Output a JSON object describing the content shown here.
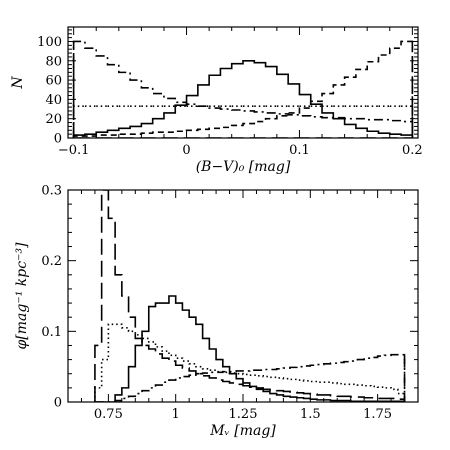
{
  "chart_data": [
    {
      "type": "histogram",
      "xlabel": "(B−V)₀ [mag]",
      "ylabel": "N",
      "xlim": [
        -0.105,
        0.205
      ],
      "ylim": [
        0,
        115
      ],
      "xticks": [
        -0.1,
        0,
        0.1,
        0.2
      ],
      "xtick_labels": [
        "−0.1",
        "0",
        "0.1",
        "0.2"
      ],
      "yticks": [
        0,
        20,
        40,
        60,
        80,
        100
      ],
      "ytick_labels": [
        "0",
        "20",
        "40",
        "60",
        "80",
        "100"
      ],
      "bin_edges": [
        -0.1,
        -0.09,
        -0.08,
        -0.07,
        -0.06,
        -0.05,
        -0.04,
        -0.03,
        -0.02,
        -0.01,
        0.0,
        0.01,
        0.02,
        0.03,
        0.04,
        0.05,
        0.06,
        0.07,
        0.08,
        0.09,
        0.1,
        0.11,
        0.12,
        0.13,
        0.14,
        0.15,
        0.16,
        0.17,
        0.18,
        0.19,
        0.2
      ],
      "series": [
        {
          "style": "solid",
          "values": [
            3,
            4,
            6,
            8,
            10,
            12,
            15,
            20,
            26,
            34,
            44,
            55,
            65,
            72,
            77,
            80,
            78,
            74,
            66,
            56,
            45,
            35,
            26,
            20,
            14,
            10,
            7,
            5,
            4,
            3
          ]
        },
        {
          "style": "dash-dot",
          "values": [
            100,
            93,
            85,
            76,
            68,
            60,
            52,
            46,
            41,
            37,
            35,
            33,
            31,
            30,
            29,
            28,
            27,
            26,
            25,
            24,
            23,
            22,
            21,
            21,
            20,
            20,
            19,
            19,
            18,
            17
          ]
        },
        {
          "style": "dashed",
          "values": [
            2,
            2,
            3,
            3,
            4,
            4,
            5,
            6,
            6,
            7,
            8,
            9,
            10,
            11,
            13,
            15,
            17,
            20,
            23,
            26,
            31,
            38,
            46,
            55,
            63,
            71,
            79,
            86,
            93,
            100
          ]
        },
        {
          "style": "long-dash",
          "values": [
            0,
            0,
            0,
            0,
            0,
            0,
            0,
            0,
            0,
            0,
            0,
            0,
            0,
            0,
            0,
            0,
            0,
            0,
            0,
            0,
            0,
            0,
            0,
            0,
            0,
            0,
            0,
            0,
            0,
            0
          ]
        },
        {
          "style": "dotted",
          "values": [
            33,
            33,
            33,
            33,
            33,
            33,
            33,
            33,
            33,
            33,
            33,
            33,
            33,
            33,
            33,
            33,
            33,
            33,
            33,
            33,
            33,
            33,
            33,
            33,
            33,
            33,
            33,
            33,
            33,
            33
          ]
        }
      ],
      "vertical_lines": [
        {
          "style": "long-dash",
          "x": -0.1,
          "y": [
            0,
            100
          ]
        },
        {
          "style": "long-dash",
          "x": 0.2,
          "y": [
            0,
            100
          ]
        }
      ]
    },
    {
      "type": "histogram",
      "xlabel": "Mᵥ [mag]",
      "ylabel": "φ[mag⁻¹ kpc⁻³]",
      "xlim": [
        0.6,
        1.9
      ],
      "ylim": [
        0,
        0.3
      ],
      "xticks": [
        0.75,
        1.0,
        1.25,
        1.5,
        1.75
      ],
      "xtick_labels": [
        "0.75",
        "1",
        "1.25",
        "1.5",
        "1.75"
      ],
      "yticks": [
        0,
        0.1,
        0.2,
        0.3
      ],
      "ytick_labels": [
        "0",
        "0.1",
        "0.2",
        "0.3"
      ],
      "bin_edges": [
        0.7,
        0.725,
        0.75,
        0.775,
        0.8,
        0.825,
        0.85,
        0.875,
        0.9,
        0.925,
        0.95,
        0.975,
        1.0,
        1.025,
        1.05,
        1.075,
        1.1,
        1.125,
        1.15,
        1.175,
        1.2,
        1.225,
        1.25,
        1.275,
        1.3,
        1.325,
        1.35,
        1.375,
        1.4,
        1.425,
        1.45,
        1.475,
        1.5,
        1.525,
        1.55,
        1.575,
        1.6,
        1.625,
        1.65,
        1.675,
        1.7,
        1.725,
        1.75,
        1.775,
        1.8,
        1.825,
        1.85
      ],
      "series": [
        {
          "style": "solid",
          "values": [
            0,
            0,
            0,
            0.01,
            0.02,
            0.05,
            0.08,
            0.1,
            0.135,
            0.14,
            0.14,
            0.15,
            0.14,
            0.13,
            0.12,
            0.11,
            0.09,
            0.075,
            0.06,
            0.05,
            0.04,
            0.033,
            0.027,
            0.022,
            0.018,
            0.015,
            0.012,
            0.01,
            0.008,
            0.007,
            0.006,
            0.005,
            0.004,
            0.003,
            0.003,
            0.002,
            0.002,
            0.002,
            0.001,
            0.001,
            0.001,
            0.001,
            0.001,
            0.001,
            0.001,
            0.001
          ]
        },
        {
          "style": "long-dash",
          "values": [
            0.08,
            0.3,
            0.26,
            0.18,
            0.15,
            0.12,
            0.09,
            0.08,
            0.075,
            0.068,
            0.062,
            0.058,
            0.052,
            0.048,
            0.044,
            0.04,
            0.037,
            0.034,
            0.031,
            0.029,
            0.027,
            0.025,
            0.023,
            0.021,
            0.02,
            0.018,
            0.017,
            0.016,
            0.015,
            0.014,
            0.013,
            0.012,
            0.011,
            0.01,
            0.01,
            0.009,
            0.008,
            0.008,
            0.007,
            0.007,
            0.006,
            0.006,
            0.005,
            0.005,
            0.005,
            0.004
          ]
        },
        {
          "style": "dotted",
          "values": [
            0.02,
            0.06,
            0.11,
            0.11,
            0.105,
            0.1,
            0.095,
            0.09,
            0.085,
            0.078,
            0.072,
            0.066,
            0.062,
            0.058,
            0.054,
            0.05,
            0.047,
            0.045,
            0.043,
            0.042,
            0.041,
            0.04,
            0.039,
            0.038,
            0.037,
            0.036,
            0.035,
            0.034,
            0.033,
            0.032,
            0.031,
            0.03,
            0.029,
            0.028,
            0.028,
            0.027,
            0.026,
            0.025,
            0.025,
            0.024,
            0.023,
            0.022,
            0.021,
            0.02,
            0.018,
            0.012
          ]
        },
        {
          "style": "dash-dot",
          "values": [
            0,
            0,
            0,
            0.002,
            0.005,
            0.008,
            0.012,
            0.016,
            0.02,
            0.024,
            0.028,
            0.031,
            0.034,
            0.036,
            0.038,
            0.04,
            0.041,
            0.042,
            0.042,
            0.043,
            0.043,
            0.044,
            0.044,
            0.045,
            0.045,
            0.046,
            0.046,
            0.047,
            0.048,
            0.049,
            0.05,
            0.051,
            0.052,
            0.053,
            0.054,
            0.055,
            0.056,
            0.057,
            0.058,
            0.06,
            0.062,
            0.063,
            0.065,
            0.066,
            0.067,
            0.067
          ]
        }
      ],
      "vertical_lines": [
        {
          "style": "dash-dot",
          "x": 1.85,
          "y": [
            0,
            0.067
          ]
        }
      ]
    }
  ]
}
